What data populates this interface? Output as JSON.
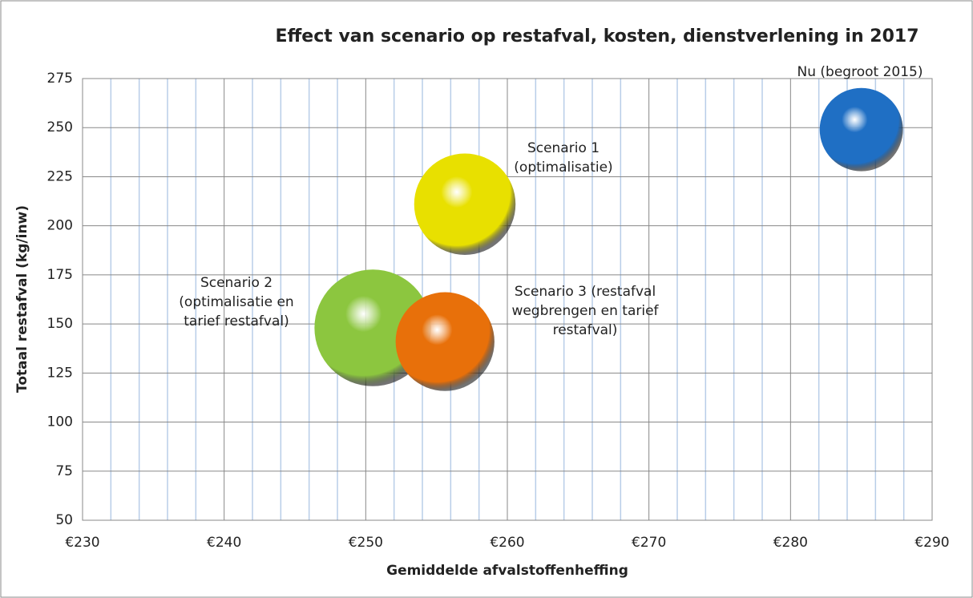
{
  "chart_data": {
    "type": "bubble",
    "title": "Effect van scenario op restafval, kosten, dienstverlening in 2017",
    "x_label": "Gemiddelde afvalstoffenheffing",
    "y_label": "Totaal restafval (kg/inw)",
    "xlim": [
      230,
      290
    ],
    "ylim": [
      50,
      275
    ],
    "xticks": [
      {
        "value": 230,
        "label": "€230"
      },
      {
        "value": 240,
        "label": "€240"
      },
      {
        "value": 250,
        "label": "€250"
      },
      {
        "value": 260,
        "label": "€260"
      },
      {
        "value": 270,
        "label": "€270"
      },
      {
        "value": 280,
        "label": "€280"
      },
      {
        "value": 290,
        "label": "€290"
      }
    ],
    "xminorticks": [
      232,
      234,
      236,
      238,
      242,
      244,
      246,
      248,
      252,
      254,
      256,
      258,
      262,
      264,
      266,
      268,
      272,
      274,
      276,
      278,
      282,
      284,
      286,
      288
    ],
    "yticks": [
      50,
      75,
      100,
      125,
      150,
      175,
      200,
      225,
      250,
      275
    ],
    "grid": true,
    "series": [
      {
        "name": [
          "Nu (begroot 2015)"
        ],
        "color": "#1f6fc4",
        "x": [
          285
        ],
        "y": [
          249
        ],
        "size": [
          27
        ]
      },
      {
        "name": [
          "Scenario 1",
          "(optimalisatie)"
        ],
        "color": "#e8e000",
        "x": [
          257
        ],
        "y": [
          211
        ],
        "size": [
          40
        ]
      },
      {
        "name": [
          "Scenario 2",
          "(optimalisatie en",
          "tarief restafval)"
        ],
        "color": "#8cc63f",
        "x": [
          250.5
        ],
        "y": [
          148
        ],
        "size": [
          53
        ]
      },
      {
        "name": [
          "Scenario 3  (restafval",
          "wegbrengen en tarief",
          "restafval)"
        ],
        "color": "#e8700a",
        "x": [
          255.6
        ],
        "y": [
          141
        ],
        "size": [
          38
        ]
      }
    ]
  }
}
